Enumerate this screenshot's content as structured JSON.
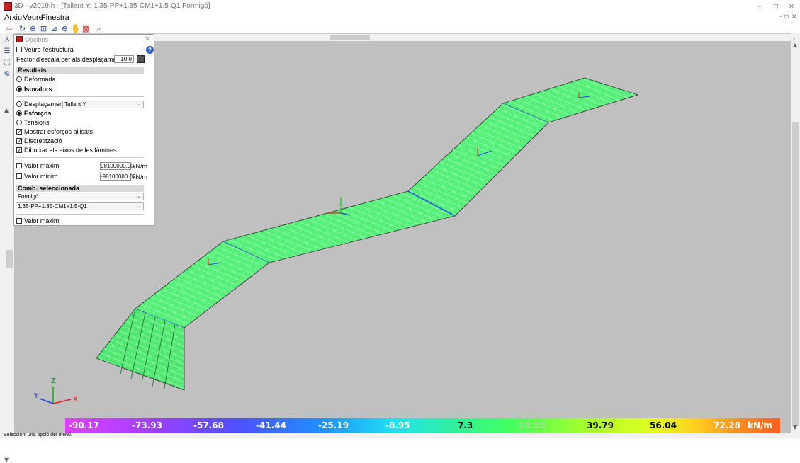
{
  "window": {
    "title": "3D - v2019.h - [Tallant Y: 1.35·PP+1.35·CM1+1.5·Q1 Formigó]",
    "minimize_icon": "minimize-icon",
    "restore_icon": "restore-icon",
    "close_icon": "close-icon",
    "mdi_controls": "- ▫ ×"
  },
  "menu": {
    "items": [
      "Arxiu",
      "Veure",
      "Finestra"
    ]
  },
  "toolbar": {
    "icons": [
      "exit-icon",
      "rotate-icon",
      "zoom-icon",
      "zoom-window-icon",
      "axis-icon",
      "zoom-out-icon",
      "pan-icon",
      "color-icon",
      "find-icon"
    ]
  },
  "options": {
    "title": "Opcions",
    "close_glyph": "×",
    "help_glyph": "?",
    "show_structure": "Veure l'estructura",
    "scale_factor_label": "Factor d'escala per als desplaçaments",
    "scale_factor_value": "10.0",
    "results_header": "Resultats",
    "deformed": "Deformada",
    "isovalues": "Isovalors",
    "displacements": "Desplaçaments",
    "quantity_selected": "Tallant Y",
    "forces": "Esforços",
    "stresses": "Tensions",
    "show_smoothed": "Mostrar esforços allisats",
    "discretization": "Discretització",
    "draw_axes": "Dibuixar els eixos de les làmines",
    "max_value_label": "Valor màxim",
    "max_value": "98100000.00",
    "min_value_label": "Valor mínim",
    "min_value": "-98100000.00",
    "unit": "kN/m",
    "comb_header": "Comb. seleccionada",
    "material": "Formigó",
    "combination": "1.35·PP+1.35·CM1+1.5·Q1",
    "max_value_label2": "Valor màxim"
  },
  "scale": {
    "values": [
      "-90.17",
      "-73.93",
      "-57.68",
      "-41.44",
      "-25.19",
      "-8.95",
      "7.3",
      "23.55",
      "39.79",
      "56.04",
      "72.28"
    ],
    "unit": "kN/m"
  },
  "axes": {
    "x": "X",
    "y": "Y",
    "z": "Z"
  },
  "status": {
    "text": "Seleccioni una opció del menú."
  },
  "colors": {
    "viewport_bg": "#c0c0c0",
    "mesh_fill": "#55ee77",
    "mesh_line": "#b8ffd0"
  }
}
